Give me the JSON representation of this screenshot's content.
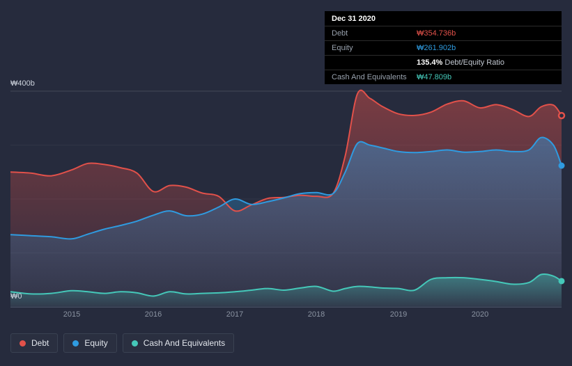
{
  "tooltip": {
    "date": "Dec 31 2020",
    "rows": [
      {
        "label": "Debt",
        "value": "₩354.736b",
        "color_key": "debt"
      },
      {
        "label": "Equity",
        "value": "₩261.902b",
        "color_key": "equity"
      },
      {
        "label": "",
        "value_bold": "135.4%",
        "value_suffix": " Debt/Equity Ratio"
      },
      {
        "label": "Cash And Equivalents",
        "value": "₩47.809b",
        "color_key": "cash"
      }
    ]
  },
  "axes": {
    "y_top_label": "₩400b",
    "y_bottom_label": "₩0",
    "x_tick_labels": [
      "2015",
      "2016",
      "2017",
      "2018",
      "2019",
      "2020"
    ]
  },
  "legend": {
    "items": [
      {
        "label": "Debt",
        "color_key": "debt"
      },
      {
        "label": "Equity",
        "color_key": "equity"
      },
      {
        "label": "Cash And Equivalents",
        "color_key": "cash"
      }
    ]
  },
  "colors": {
    "debt": "#e2514a",
    "equity": "#2f9be0",
    "cash": "#45c8b9",
    "background": "#262b3d",
    "tooltip_bg": "#000000"
  },
  "chart_data": {
    "type": "area",
    "title": "",
    "x_unit": "year",
    "y_unit": "₩b",
    "x_range": [
      2014.25,
      2021.0
    ],
    "ylim": [
      0,
      415
    ],
    "y_max": 400,
    "y_gridlines": [
      100,
      200,
      300,
      400
    ],
    "grid": "horizontal-faint",
    "legend_position": "bottom-left",
    "x_ticks": [
      2015,
      2016,
      2017,
      2018,
      2019,
      2020
    ],
    "x": [
      2014.25,
      2014.5,
      2014.75,
      2015.0,
      2015.2,
      2015.4,
      2015.6,
      2015.8,
      2016.0,
      2016.2,
      2016.4,
      2016.6,
      2016.8,
      2017.0,
      2017.2,
      2017.4,
      2017.6,
      2017.8,
      2018.0,
      2018.2,
      2018.35,
      2018.5,
      2018.65,
      2018.8,
      2019.0,
      2019.2,
      2019.4,
      2019.6,
      2019.8,
      2020.0,
      2020.2,
      2020.4,
      2020.6,
      2020.75,
      2020.9,
      2021.0
    ],
    "series": [
      {
        "name": "Debt",
        "color_key": "debt",
        "end_marker": "ring",
        "end_value_label": "₩354.736b",
        "values": [
          250,
          248,
          243,
          254,
          266,
          264,
          258,
          248,
          214,
          225,
          222,
          211,
          205,
          178,
          189,
          201,
          203,
          207,
          205,
          210,
          280,
          395,
          387,
          372,
          358,
          355,
          361,
          376,
          382,
          369,
          375,
          366,
          353,
          371,
          374,
          354.7
        ]
      },
      {
        "name": "Equity",
        "color_key": "equity",
        "end_marker": "dot",
        "end_value_label": "₩261.902b",
        "values": [
          134,
          132,
          130,
          126,
          135,
          144,
          151,
          159,
          170,
          178,
          169,
          172,
          185,
          200,
          190,
          195,
          202,
          210,
          212,
          210,
          250,
          303,
          300,
          295,
          288,
          286,
          288,
          291,
          287,
          288,
          291,
          288,
          291,
          314,
          300,
          261.9
        ]
      },
      {
        "name": "Cash And Equivalents",
        "color_key": "cash",
        "end_marker": "dot",
        "end_value_label": "₩47.809b",
        "values": [
          28,
          24,
          25,
          30,
          28,
          25,
          28,
          26,
          20,
          28,
          24,
          25,
          26,
          28,
          31,
          34,
          31,
          35,
          38,
          29,
          34,
          38,
          37,
          35,
          34,
          31,
          51,
          54,
          54,
          51,
          47,
          42,
          45,
          60,
          57,
          47.8
        ]
      }
    ]
  }
}
